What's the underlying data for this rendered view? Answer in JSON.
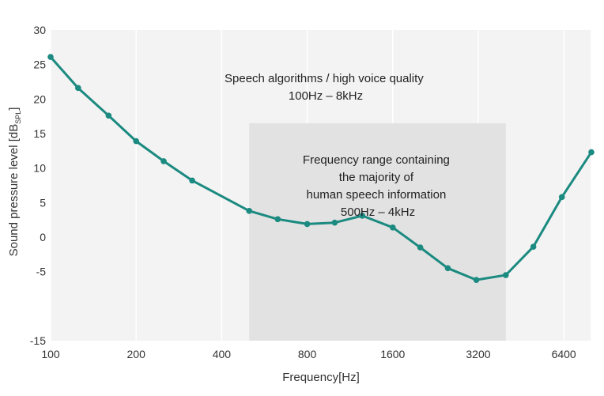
{
  "chart_data": {
    "type": "line",
    "xlabel": "Frequency[Hz]",
    "ylabel": "Sound pressure level [dB",
    "ylabel_sub": "SPL",
    "ylabel_close": "]",
    "xscale": "log2",
    "xlim": [
      100,
      8000
    ],
    "ylim": [
      -15,
      30
    ],
    "grid": "vertical",
    "x_ticks": [
      100,
      200,
      400,
      800,
      1600,
      3200,
      6400
    ],
    "x_tick_labels": [
      "100",
      "200",
      "400",
      "800",
      "1600",
      "3200",
      "6400"
    ],
    "y_ticks": [
      -15,
      -10,
      -5,
      0,
      5,
      10,
      15,
      20,
      25,
      30
    ],
    "y_tick_labels": [
      "-15",
      "-5",
      "0",
      "5",
      "10",
      "15",
      "20",
      "25",
      "30"
    ],
    "y_tick_values_labeled": [
      -15,
      -5,
      0,
      5,
      10,
      15,
      20,
      25,
      30
    ],
    "series": [
      {
        "color": "#1b8a80",
        "x": [
          100,
          125,
          160,
          200,
          250,
          315,
          500,
          630,
          800,
          1000,
          1250,
          1600,
          2000,
          2500,
          3150,
          4000,
          5000,
          6300,
          8000
        ],
        "y": [
          26.1,
          21.6,
          17.6,
          13.9,
          11.0,
          8.2,
          3.8,
          2.6,
          1.9,
          2.1,
          3.1,
          1.4,
          -1.5,
          -4.5,
          -6.2,
          -5.5,
          -1.4,
          5.8,
          12.3
        ]
      }
    ],
    "shaded_region": {
      "x": [
        500,
        4000
      ],
      "y": [
        -15,
        16.5
      ],
      "color": "#e2e2e2"
    },
    "annotations": [
      {
        "lines": [
          "Speech algorithms / high voice quality",
          "100Hz – 8kHz"
        ]
      },
      {
        "lines": [
          "Frequency range containing",
          "the majority of",
          "human speech information",
          "500Hz – 4kHz"
        ]
      }
    ]
  }
}
